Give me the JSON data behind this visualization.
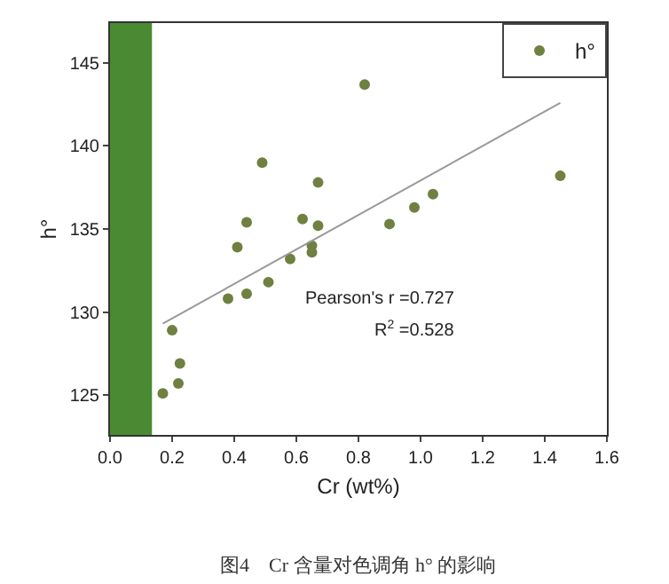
{
  "chart_data": {
    "type": "scatter",
    "xlabel": "Cr (wt%)",
    "ylabel": "h°",
    "xlim": [
      0,
      1.6
    ],
    "ylim": [
      122.6,
      147.4
    ],
    "xticks": [
      {
        "value": 0,
        "label": "0.0"
      },
      0.2,
      0.4,
      0.6,
      0.8,
      {
        "value": 1,
        "label": "1.0"
      },
      1.2,
      1.4,
      1.6
    ],
    "yticks": [
      125,
      130,
      135,
      140,
      145
    ],
    "series": [
      {
        "name": "h°",
        "color": "#6f8040",
        "x": [
          0.17,
          0.2,
          0.22,
          0.225,
          0.38,
          0.41,
          0.44,
          0.44,
          0.49,
          0.51,
          0.58,
          0.62,
          0.65,
          0.65,
          0.67,
          0.67,
          0.82,
          0.9,
          0.98,
          1.04,
          1.45
        ],
        "values": [
          125.1,
          128.9,
          125.7,
          126.9,
          130.8,
          133.9,
          131.1,
          135.4,
          139.0,
          131.8,
          133.2,
          135.6,
          134.0,
          133.6,
          135.2,
          137.8,
          143.7,
          135.3,
          136.3,
          137.1,
          138.2
        ]
      },
      {
        "type": "line",
        "marker": "none",
        "color": "#999999",
        "x": [
          0.17,
          1.45
        ],
        "values": [
          129.3,
          142.6
        ]
      }
    ],
    "bands": [
      {
        "axis": "x",
        "from": 0,
        "to": 0.135,
        "color": "#4a8a32"
      }
    ],
    "annotations": [
      "Pearson's r =0.727",
      "R$^{2}$ =0.528",
      "图4　Cr 含量对色调角 h° 的影响"
    ],
    "legend": "top right",
    "marker": "circle",
    "grid": false
  }
}
